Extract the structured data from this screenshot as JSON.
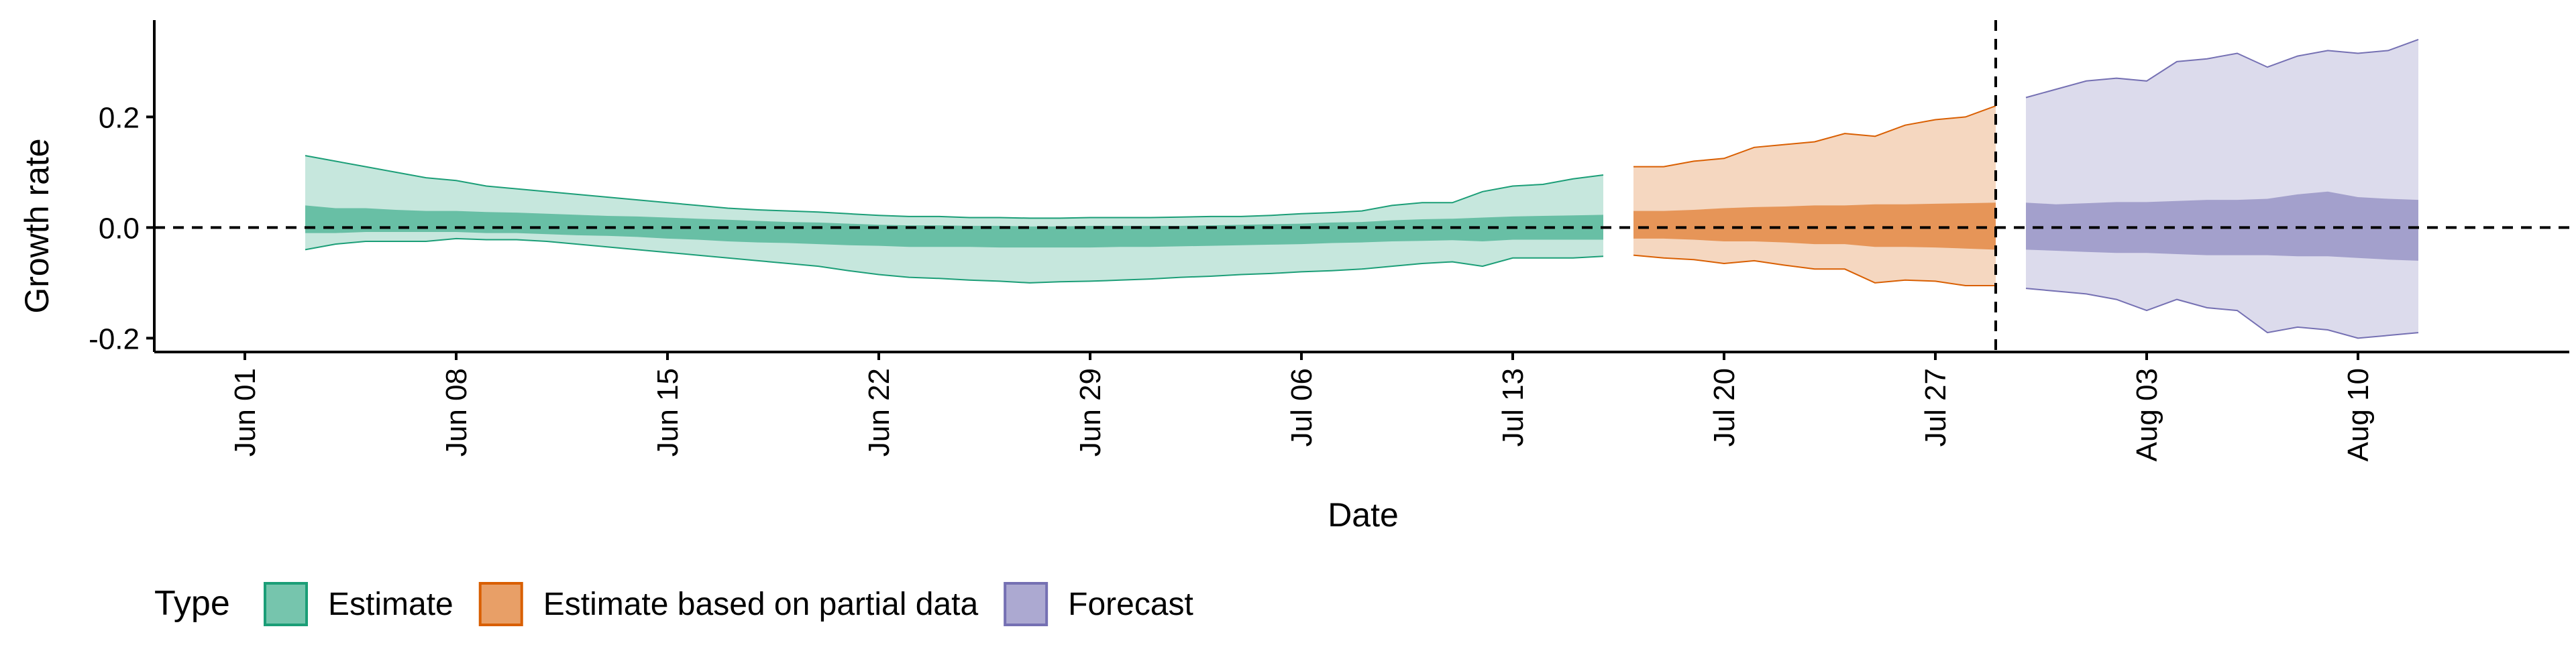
{
  "chart_data": {
    "type": "area",
    "xlabel": "Date",
    "ylabel": "Growth rate",
    "xlim": [
      "2020-05-29",
      "2020-08-17"
    ],
    "ylim": [
      -0.225,
      0.375
    ],
    "x_ticks": [
      {
        "date": "2020-06-01",
        "label": "Jun 01"
      },
      {
        "date": "2020-06-08",
        "label": "Jun 08"
      },
      {
        "date": "2020-06-15",
        "label": "Jun 15"
      },
      {
        "date": "2020-06-22",
        "label": "Jun 22"
      },
      {
        "date": "2020-06-29",
        "label": "Jun 29"
      },
      {
        "date": "2020-07-06",
        "label": "Jul 06"
      },
      {
        "date": "2020-07-13",
        "label": "Jul 13"
      },
      {
        "date": "2020-07-20",
        "label": "Jul 20"
      },
      {
        "date": "2020-07-27",
        "label": "Jul 27"
      },
      {
        "date": "2020-08-03",
        "label": "Aug 03"
      },
      {
        "date": "2020-08-10",
        "label": "Aug 10"
      }
    ],
    "y_ticks": [
      {
        "value": -0.2,
        "label": "-0.2"
      },
      {
        "value": 0.0,
        "label": "0.0"
      },
      {
        "value": 0.2,
        "label": "0.2"
      }
    ],
    "reference_lines": {
      "horizontal_y": 0.0,
      "vertical_date": "2020-07-29"
    },
    "grid": false,
    "legend": {
      "title": "Type",
      "position": "bottom-left",
      "entries": [
        "Estimate",
        "Estimate based on partial data",
        "Forecast"
      ]
    },
    "series": [
      {
        "name": "Estimate",
        "fill_color": "#1b9e77",
        "x": [
          "2020-06-03",
          "2020-06-04",
          "2020-06-05",
          "2020-06-06",
          "2020-06-07",
          "2020-06-08",
          "2020-06-09",
          "2020-06-10",
          "2020-06-11",
          "2020-06-12",
          "2020-06-13",
          "2020-06-14",
          "2020-06-15",
          "2020-06-16",
          "2020-06-17",
          "2020-06-18",
          "2020-06-19",
          "2020-06-20",
          "2020-06-21",
          "2020-06-22",
          "2020-06-23",
          "2020-06-24",
          "2020-06-25",
          "2020-06-26",
          "2020-06-27",
          "2020-06-28",
          "2020-06-29",
          "2020-06-30",
          "2020-07-01",
          "2020-07-02",
          "2020-07-03",
          "2020-07-04",
          "2020-07-05",
          "2020-07-06",
          "2020-07-07",
          "2020-07-08",
          "2020-07-09",
          "2020-07-10",
          "2020-07-11",
          "2020-07-12",
          "2020-07-13",
          "2020-07-14",
          "2020-07-15",
          "2020-07-16"
        ],
        "outer_lower": [
          -0.04,
          -0.03,
          -0.025,
          -0.025,
          -0.025,
          -0.02,
          -0.022,
          -0.022,
          -0.025,
          -0.03,
          -0.035,
          -0.04,
          -0.045,
          -0.05,
          -0.055,
          -0.06,
          -0.065,
          -0.07,
          -0.078,
          -0.085,
          -0.09,
          -0.092,
          -0.095,
          -0.097,
          -0.1,
          -0.098,
          -0.097,
          -0.095,
          -0.093,
          -0.09,
          -0.088,
          -0.085,
          -0.083,
          -0.08,
          -0.078,
          -0.075,
          -0.07,
          -0.065,
          -0.062,
          -0.07,
          -0.055,
          -0.055,
          -0.055,
          -0.052
        ],
        "outer_upper": [
          0.13,
          0.12,
          0.11,
          0.1,
          0.09,
          0.085,
          0.075,
          0.07,
          0.065,
          0.06,
          0.055,
          0.05,
          0.045,
          0.04,
          0.035,
          0.032,
          0.03,
          0.028,
          0.025,
          0.022,
          0.02,
          0.02,
          0.018,
          0.018,
          0.017,
          0.017,
          0.018,
          0.018,
          0.018,
          0.019,
          0.02,
          0.02,
          0.022,
          0.025,
          0.027,
          0.03,
          0.04,
          0.045,
          0.045,
          0.065,
          0.075,
          0.078,
          0.088,
          0.095
        ],
        "inner_lower": [
          -0.01,
          -0.01,
          -0.008,
          -0.008,
          -0.008,
          -0.008,
          -0.01,
          -0.01,
          -0.012,
          -0.014,
          -0.015,
          -0.017,
          -0.02,
          -0.022,
          -0.025,
          -0.027,
          -0.028,
          -0.03,
          -0.032,
          -0.033,
          -0.035,
          -0.035,
          -0.035,
          -0.036,
          -0.036,
          -0.036,
          -0.036,
          -0.035,
          -0.035,
          -0.034,
          -0.033,
          -0.032,
          -0.031,
          -0.03,
          -0.028,
          -0.027,
          -0.025,
          -0.024,
          -0.023,
          -0.025,
          -0.022,
          -0.022,
          -0.022,
          -0.022
        ],
        "inner_upper": [
          0.04,
          0.035,
          0.035,
          0.032,
          0.03,
          0.03,
          0.028,
          0.027,
          0.025,
          0.023,
          0.021,
          0.02,
          0.018,
          0.016,
          0.014,
          0.012,
          0.01,
          0.009,
          0.007,
          0.005,
          0.004,
          0.004,
          0.003,
          0.003,
          0.002,
          0.002,
          0.003,
          0.003,
          0.003,
          0.003,
          0.004,
          0.005,
          0.006,
          0.007,
          0.009,
          0.01,
          0.013,
          0.015,
          0.016,
          0.018,
          0.02,
          0.021,
          0.022,
          0.023
        ]
      },
      {
        "name": "Estimate based on partial data",
        "fill_color": "#d95f02",
        "x": [
          "2020-07-17",
          "2020-07-18",
          "2020-07-19",
          "2020-07-20",
          "2020-07-21",
          "2020-07-22",
          "2020-07-23",
          "2020-07-24",
          "2020-07-25",
          "2020-07-26",
          "2020-07-27",
          "2020-07-28",
          "2020-07-29"
        ],
        "outer_lower": [
          -0.05,
          -0.055,
          -0.058,
          -0.065,
          -0.06,
          -0.068,
          -0.075,
          -0.075,
          -0.1,
          -0.095,
          -0.097,
          -0.105,
          -0.105
        ],
        "outer_upper": [
          0.11,
          0.11,
          0.12,
          0.125,
          0.145,
          0.15,
          0.155,
          0.17,
          0.165,
          0.185,
          0.195,
          0.2,
          0.22
        ],
        "inner_lower": [
          -0.02,
          -0.02,
          -0.022,
          -0.025,
          -0.025,
          -0.027,
          -0.03,
          -0.03,
          -0.035,
          -0.035,
          -0.036,
          -0.038,
          -0.04
        ],
        "inner_upper": [
          0.03,
          0.03,
          0.032,
          0.035,
          0.037,
          0.038,
          0.04,
          0.04,
          0.042,
          0.042,
          0.043,
          0.044,
          0.045
        ]
      },
      {
        "name": "Forecast",
        "fill_color": "#7570b3",
        "x": [
          "2020-07-30",
          "2020-07-31",
          "2020-08-01",
          "2020-08-02",
          "2020-08-03",
          "2020-08-04",
          "2020-08-05",
          "2020-08-06",
          "2020-08-07",
          "2020-08-08",
          "2020-08-09",
          "2020-08-10",
          "2020-08-11",
          "2020-08-12"
        ],
        "outer_lower": [
          -0.11,
          -0.115,
          -0.12,
          -0.13,
          -0.15,
          -0.13,
          -0.145,
          -0.15,
          -0.19,
          -0.18,
          -0.185,
          -0.2,
          -0.195,
          -0.19
        ],
        "outer_upper": [
          0.235,
          0.25,
          0.265,
          0.27,
          0.265,
          0.3,
          0.305,
          0.315,
          0.29,
          0.31,
          0.32,
          0.315,
          0.32,
          0.34
        ],
        "inner_lower": [
          -0.04,
          -0.042,
          -0.044,
          -0.046,
          -0.046,
          -0.048,
          -0.05,
          -0.05,
          -0.05,
          -0.052,
          -0.052,
          -0.055,
          -0.058,
          -0.06
        ],
        "inner_upper": [
          0.045,
          0.042,
          0.044,
          0.046,
          0.046,
          0.048,
          0.05,
          0.05,
          0.052,
          0.06,
          0.065,
          0.055,
          0.052,
          0.05
        ]
      }
    ]
  }
}
